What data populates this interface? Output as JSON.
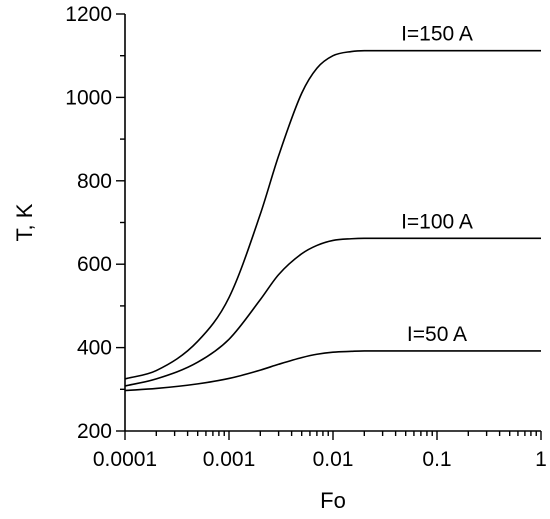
{
  "chart_data": {
    "type": "line",
    "title": "",
    "xlabel": "Fo",
    "ylabel": "T, K",
    "x_scale": "log",
    "xlim": [
      0.0001,
      1
    ],
    "ylim": [
      200,
      1200
    ],
    "x_tick_labels": [
      "0.0001",
      "0.001",
      "0.01",
      "0.1",
      "1"
    ],
    "y_tick_labels": [
      "200",
      "400",
      "600",
      "800",
      "1000",
      "1200"
    ],
    "grid": false,
    "legend": "none",
    "series": [
      {
        "name": "I=150 A",
        "x": [
          0.0001,
          0.0002,
          0.0005,
          0.001,
          0.002,
          0.003,
          0.005,
          0.007,
          0.01,
          0.015,
          0.02,
          0.05,
          0.1,
          1
        ],
        "y": [
          325,
          345,
          415,
          520,
          720,
          860,
          1010,
          1070,
          1100,
          1110,
          1112,
          1112,
          1112,
          1112
        ]
      },
      {
        "name": "I=100 A",
        "x": [
          0.0001,
          0.0002,
          0.0005,
          0.001,
          0.002,
          0.003,
          0.005,
          0.007,
          0.01,
          0.015,
          0.02,
          0.05,
          0.1,
          1
        ],
        "y": [
          308,
          325,
          365,
          420,
          515,
          575,
          625,
          645,
          657,
          661,
          662,
          662,
          662,
          662
        ]
      },
      {
        "name": "I=50 A",
        "x": [
          0.0001,
          0.0002,
          0.0005,
          0.001,
          0.002,
          0.003,
          0.005,
          0.007,
          0.01,
          0.015,
          0.02,
          0.05,
          0.1,
          1
        ],
        "y": [
          297,
          302,
          313,
          326,
          346,
          360,
          376,
          384,
          389,
          391,
          392,
          392,
          392,
          392
        ]
      }
    ]
  }
}
